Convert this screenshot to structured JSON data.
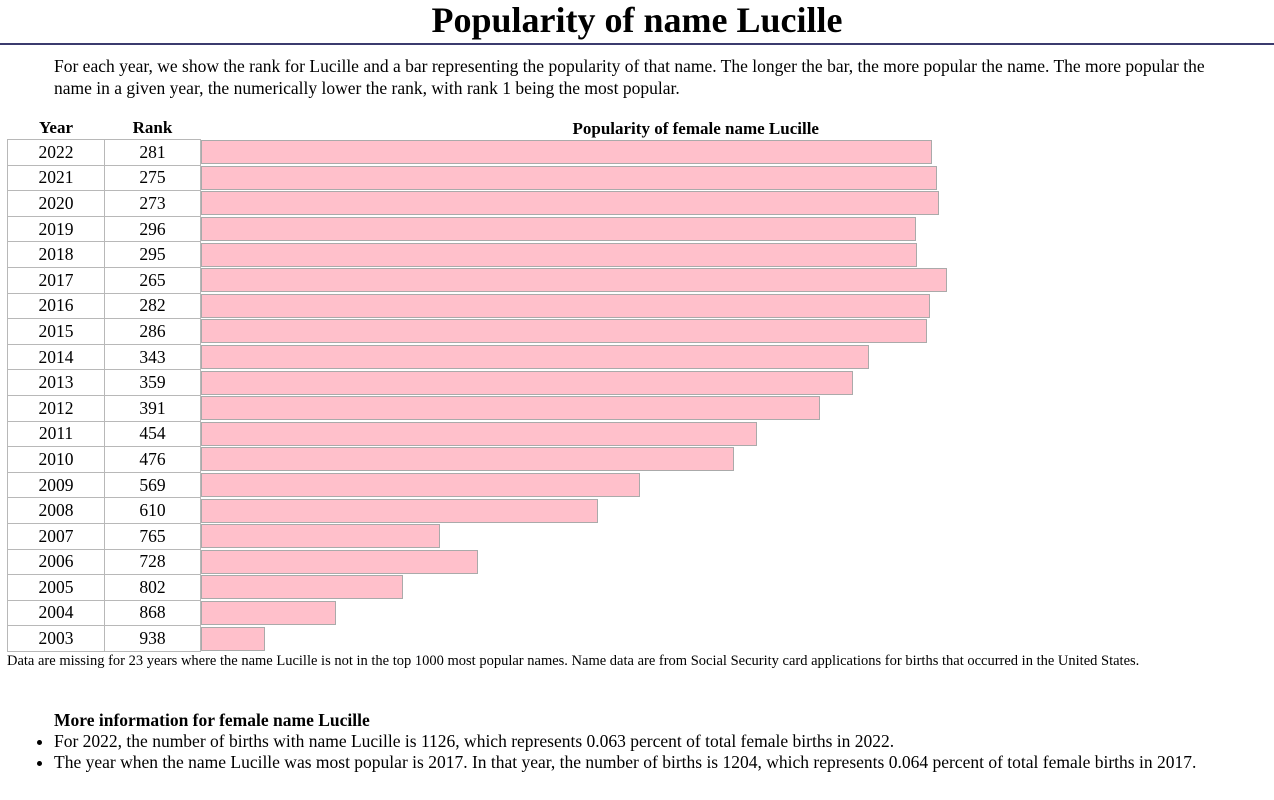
{
  "page": {
    "title": "Popularity of name Lucille",
    "intro": "For each year, we show the rank for Lucille and a bar representing the popularity of that name. The longer the bar, the more popular the name. The more popular the name in a given year, the numerically lower the rank, with rank 1 being the most popular."
  },
  "table": {
    "year_header": "Year",
    "rank_header": "Rank",
    "bar_header": "Popularity of female name Lucille"
  },
  "chart_data": {
    "type": "bar",
    "orientation": "horizontal",
    "title": "Popularity of female name Lucille",
    "bar_color": "#ffc0cb",
    "categories": [
      "2022",
      "2021",
      "2020",
      "2019",
      "2018",
      "2017",
      "2016",
      "2015",
      "2014",
      "2013",
      "2012",
      "2011",
      "2010",
      "2009",
      "2008",
      "2007",
      "2006",
      "2005",
      "2004",
      "2003"
    ],
    "ranks": [
      281,
      275,
      273,
      296,
      295,
      265,
      282,
      286,
      343,
      359,
      391,
      454,
      476,
      569,
      610,
      765,
      728,
      802,
      868,
      938
    ],
    "popularity": [
      0.977,
      0.984,
      0.987,
      0.956,
      0.957,
      0.997,
      0.975,
      0.971,
      0.893,
      0.872,
      0.828,
      0.743,
      0.713,
      0.587,
      0.531,
      0.319,
      0.37,
      0.27,
      0.181,
      0.086
    ]
  },
  "footnote": "Data are missing for 23 years where the name Lucille is not in the top 1000 most popular names. Name data are from Social Security card applications for births that occurred in the United States.",
  "more_info": {
    "heading": "More information for female name Lucille",
    "items": [
      "For 2022, the number of births with name Lucille is 1126, which represents 0.063 percent of total female births in 2022.",
      "The year when the name Lucille was most popular is 2017. In that year, the number of births is 1204, which represents 0.064 percent of total female births in 2017."
    ]
  }
}
